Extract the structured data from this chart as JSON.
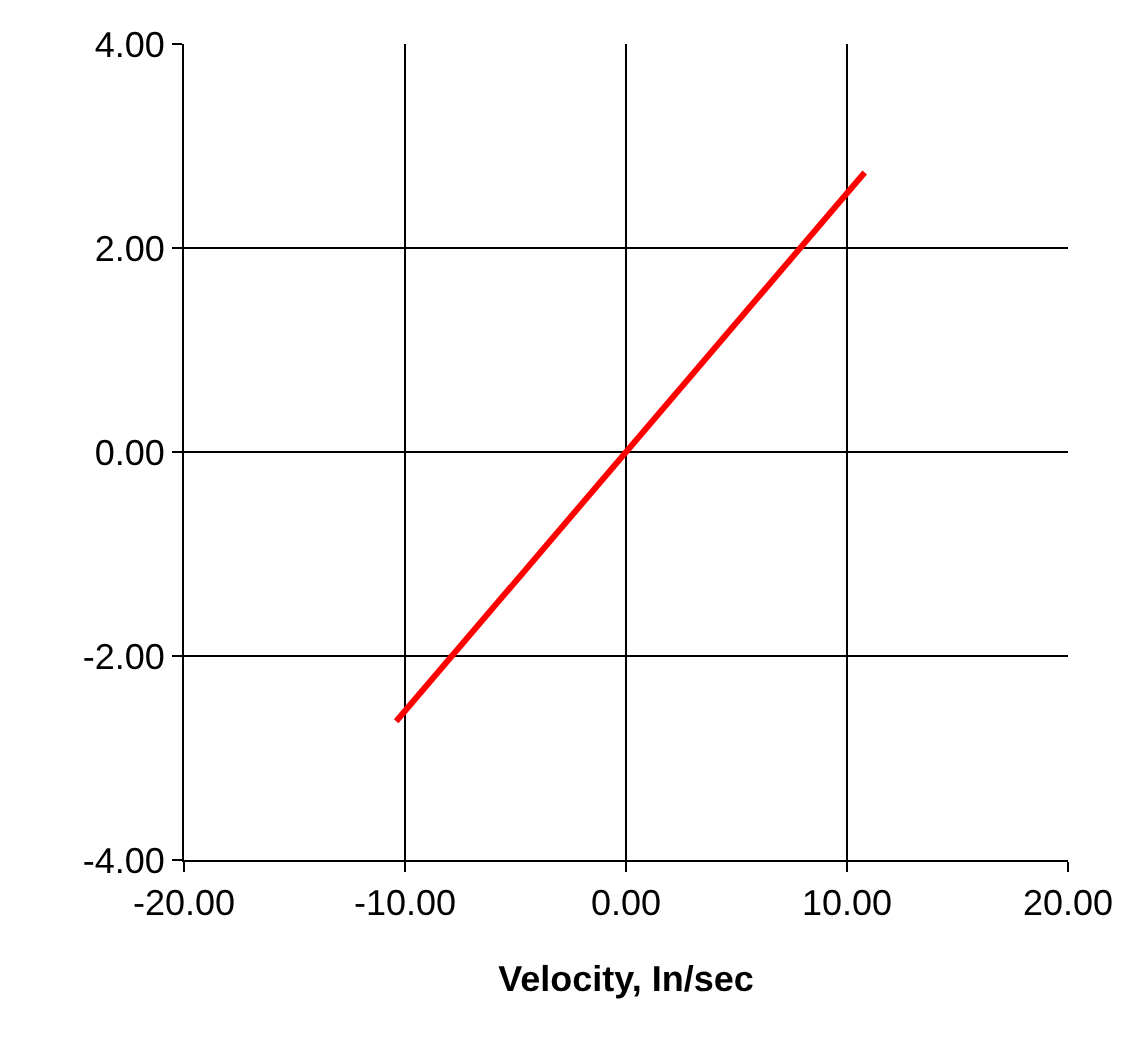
{
  "chart_data": {
    "type": "line",
    "xlabel": "Velocity, In/sec",
    "series": [
      {
        "color": "#ff0000",
        "x": [
          -10.4,
          10.8
        ],
        "values": [
          -2.64,
          2.74
        ]
      }
    ],
    "xlim": [
      -20,
      20
    ],
    "ylim": [
      -4,
      4
    ],
    "xticks": [
      {
        "value": -20,
        "label": "-20.00"
      },
      {
        "value": -10,
        "label": "-10.00"
      },
      {
        "value": 0,
        "label": "0.00"
      },
      {
        "value": 10,
        "label": "10.00"
      },
      {
        "value": 20,
        "label": "20.00"
      }
    ],
    "yticks": [
      {
        "value": -4,
        "label": "-4.00"
      },
      {
        "value": -2,
        "label": "-2.00"
      },
      {
        "value": 0,
        "label": "0.00"
      },
      {
        "value": 2,
        "label": "2.00"
      },
      {
        "value": 4,
        "label": "4.00"
      }
    ],
    "grid": true,
    "marker": "none",
    "line_style": "solid"
  }
}
